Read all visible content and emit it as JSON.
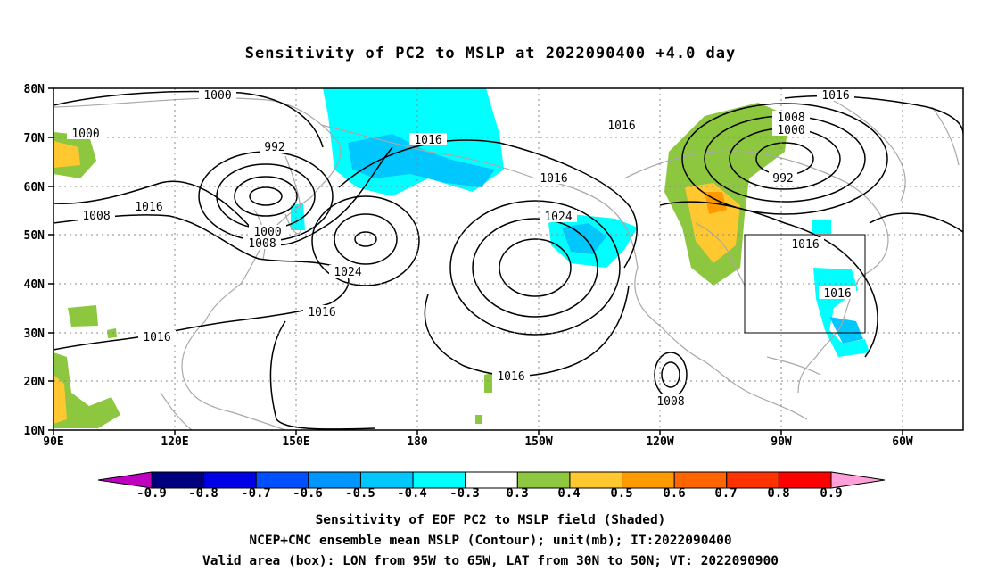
{
  "title": "Sensitivity of PC2 to MSLP at 2022090400 +4.0 day",
  "map": {
    "lat_labels": [
      "80N",
      "70N",
      "60N",
      "50N",
      "40N",
      "30N",
      "20N",
      "10N"
    ],
    "lon_labels": [
      "90E",
      "120E",
      "150E",
      "180",
      "150W",
      "120W",
      "90W",
      "60W"
    ],
    "grid": "dotted",
    "coastline_color": "#a8a8a8"
  },
  "isobars": {
    "unit": "mb",
    "labels": [
      {
        "id": "l1000a",
        "text": "1000"
      },
      {
        "id": "l1000b",
        "text": "1000"
      },
      {
        "id": "l992a",
        "text": "992"
      },
      {
        "id": "l1008a",
        "text": "1008"
      },
      {
        "id": "l1016a",
        "text": "1016"
      },
      {
        "id": "l1000c",
        "text": "1000"
      },
      {
        "id": "l1008b",
        "text": "1008"
      },
      {
        "id": "l1024a",
        "text": "1024"
      },
      {
        "id": "l1016b",
        "text": "1016"
      },
      {
        "id": "l1016c",
        "text": "1016"
      },
      {
        "id": "l1016d",
        "text": "1016"
      },
      {
        "id": "l1016e",
        "text": "1016"
      },
      {
        "id": "l1024b",
        "text": "1024"
      },
      {
        "id": "l1016f",
        "text": "1016"
      },
      {
        "id": "l1008c",
        "text": "1008"
      },
      {
        "id": "l1016g",
        "text": "1016"
      },
      {
        "id": "l1008d",
        "text": "1008"
      },
      {
        "id": "l1000d",
        "text": "1000"
      },
      {
        "id": "l992b",
        "text": "992"
      },
      {
        "id": "l1016h",
        "text": "1016"
      },
      {
        "id": "l1016i",
        "text": "1016"
      },
      {
        "id": "l1016j",
        "text": "1016"
      }
    ]
  },
  "valid_area_box": {
    "lon_min": "95W",
    "lon_max": "65W",
    "lat_min": "30N",
    "lat_max": "50N"
  },
  "colorbar": {
    "labels": [
      "-0.9",
      "-0.8",
      "-0.7",
      "-0.6",
      "-0.5",
      "-0.4",
      "-0.3",
      "0.3",
      "0.4",
      "0.5",
      "0.6",
      "0.7",
      "0.8",
      "0.9"
    ],
    "colors": [
      "#00007f",
      "#0000e6",
      "#0050ff",
      "#0096ff",
      "#00c8ff",
      "#00ffff",
      "#ffffff",
      "#8dc63f",
      "#ffc830",
      "#ff9b00",
      "#ff6600",
      "#ff3300",
      "#ff0000"
    ],
    "low_extend_color": "#c000c0",
    "high_extend_color": "#ffa0d8"
  },
  "captions": {
    "line1": "Sensitivity of EOF PC2 to MSLP field (Shaded)",
    "line2": "NCEP+CMC ensemble mean MSLP (Contour); unit(mb); IT:2022090400",
    "line3": "Valid area (box): LON from 95W to 65W, LAT from 30N to 50N; VT: 2022090900"
  }
}
